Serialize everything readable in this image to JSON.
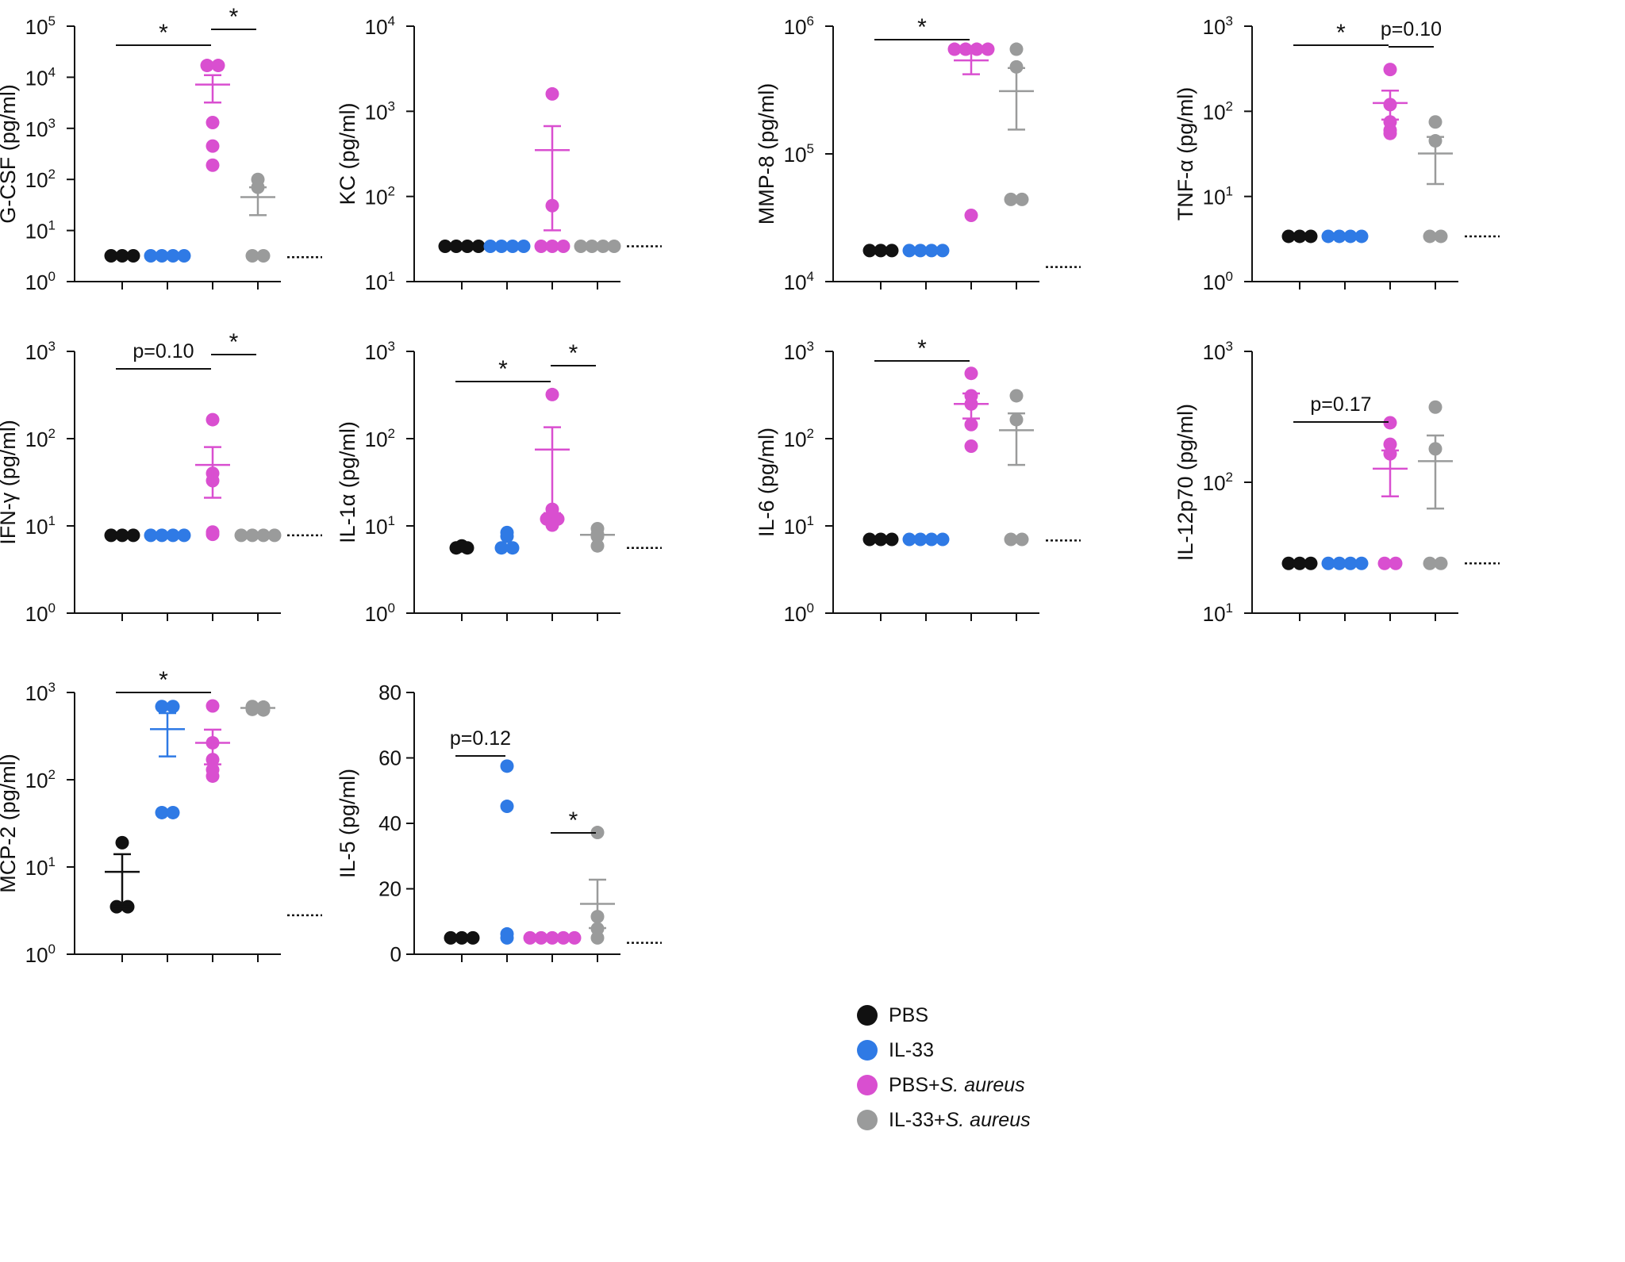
{
  "figure": {
    "title": ""
  },
  "groups": [
    "PBS",
    "IL-33",
    "PBS+S. aureus",
    "IL-33+S. aureus"
  ],
  "legend": {
    "items": [
      {
        "label": "PBS",
        "prefix": "PBS",
        "italic": "",
        "color": "#111111"
      },
      {
        "label": "IL-33",
        "prefix": "IL-33",
        "italic": "",
        "color": "#2f7ae5"
      },
      {
        "label": "PBS+S. aureus",
        "prefix": "PBS+",
        "italic": "S. aureus",
        "color": "#d94fd0"
      },
      {
        "label": "IL-33+S. aureus",
        "prefix": "IL-33+",
        "italic": "S. aureus",
        "color": "#9a9b9b"
      }
    ]
  },
  "chart_data": [
    {
      "type": "scatter",
      "scale": "log",
      "ylabel": "G-CSF (pg/ml)",
      "ylim": [
        1,
        100000
      ],
      "ticks": [
        1,
        10,
        100,
        1000,
        10000,
        100000
      ],
      "tick_exponents": [
        "0",
        "1",
        "2",
        "3",
        "4",
        "5"
      ],
      "lloq": 3,
      "series": [
        {
          "name": "PBS",
          "points": [
            3.2,
            3.2,
            3.2
          ]
        },
        {
          "name": "IL-33",
          "points": [
            3.2,
            3.2,
            3.2,
            3.2
          ]
        },
        {
          "name": "PBS+S. aureus",
          "points": [
            17000,
            17000,
            1300,
            450,
            190
          ],
          "mean": 7200,
          "sem_lo": 3200,
          "sem_hi": 11000
        },
        {
          "name": "IL-33+S. aureus",
          "points": [
            100,
            70,
            3.2,
            3.2
          ],
          "mean": 45,
          "sem_lo": 20,
          "sem_hi": 70
        }
      ],
      "annotations": [
        {
          "from": 0,
          "to": 2,
          "label": "*"
        },
        {
          "from": 2,
          "to": 3,
          "label": "*"
        }
      ]
    },
    {
      "type": "scatter",
      "scale": "log",
      "ylabel": "KC (pg/ml)",
      "ylim": [
        10,
        10000
      ],
      "ticks": [
        10,
        100,
        1000,
        10000
      ],
      "tick_exponents": [
        "1",
        "2",
        "3",
        "4"
      ],
      "lloq": 26,
      "series": [
        {
          "name": "PBS",
          "points": [
            26,
            26,
            26,
            26
          ]
        },
        {
          "name": "IL-33",
          "points": [
            26,
            26,
            26,
            26
          ]
        },
        {
          "name": "PBS+S. aureus",
          "points": [
            1600,
            78,
            26,
            26,
            26
          ],
          "mean": 350,
          "sem_lo": 40,
          "sem_hi": 670
        },
        {
          "name": "IL-33+S. aureus",
          "points": [
            26,
            26,
            26,
            26
          ]
        }
      ],
      "annotations": []
    },
    {
      "type": "scatter",
      "scale": "log",
      "ylabel": "MMP-8 (pg/ml)",
      "ylim": [
        10000,
        1000000
      ],
      "ticks": [
        10000,
        100000,
        1000000
      ],
      "tick_exponents": [
        "4",
        "5",
        "6"
      ],
      "lloq": 13000,
      "series": [
        {
          "name": "PBS",
          "points": [
            17500,
            17500,
            17500
          ]
        },
        {
          "name": "IL-33",
          "points": [
            17500,
            17500,
            17500,
            17500
          ]
        },
        {
          "name": "PBS+S. aureus",
          "points": [
            660000,
            660000,
            660000,
            660000,
            33000
          ],
          "mean": 540000,
          "sem_lo": 420000,
          "sem_hi": 660000
        },
        {
          "name": "IL-33+S. aureus",
          "points": [
            660000,
            480000,
            44000,
            44000
          ],
          "mean": 310000,
          "sem_lo": 155000,
          "sem_hi": 470000
        }
      ],
      "annotations": [
        {
          "from": 0,
          "to": 2,
          "label": "*"
        }
      ]
    },
    {
      "type": "scatter",
      "scale": "log",
      "ylabel": "TNF-α (pg/ml)",
      "ylim": [
        1,
        1000
      ],
      "ticks": [
        1,
        10,
        100,
        1000
      ],
      "tick_exponents": [
        "0",
        "1",
        "2",
        "3"
      ],
      "lloq": 3.4,
      "series": [
        {
          "name": "PBS",
          "points": [
            3.4,
            3.4,
            3.4
          ]
        },
        {
          "name": "IL-33",
          "points": [
            3.4,
            3.4,
            3.4,
            3.4
          ]
        },
        {
          "name": "PBS+S. aureus",
          "points": [
            310,
            120,
            75,
            60,
            55
          ],
          "mean": 125,
          "sem_lo": 80,
          "sem_hi": 175
        },
        {
          "name": "IL-33+S. aureus",
          "points": [
            75,
            45,
            3.4,
            3.4
          ],
          "mean": 32,
          "sem_lo": 14,
          "sem_hi": 50
        }
      ],
      "annotations": [
        {
          "from": 0,
          "to": 2,
          "label": "*"
        },
        {
          "from": 2,
          "to": 3,
          "label": "p=0.10"
        }
      ]
    },
    {
      "type": "scatter",
      "scale": "log",
      "ylabel": "IFN-γ (pg/ml)",
      "ylim": [
        1,
        1000
      ],
      "ticks": [
        1,
        10,
        100,
        1000
      ],
      "tick_exponents": [
        "0",
        "1",
        "2",
        "3"
      ],
      "lloq": 7.8,
      "series": [
        {
          "name": "PBS",
          "points": [
            7.8,
            7.8,
            7.8
          ]
        },
        {
          "name": "IL-33",
          "points": [
            7.8,
            7.8,
            7.8,
            7.8
          ]
        },
        {
          "name": "PBS+S. aureus",
          "points": [
            165,
            40,
            33,
            8.5,
            8.0
          ],
          "mean": 50,
          "sem_lo": 21,
          "sem_hi": 80
        },
        {
          "name": "IL-33+S. aureus",
          "points": [
            7.8,
            7.8,
            7.8,
            7.8
          ]
        }
      ],
      "annotations": [
        {
          "from": 0,
          "to": 2,
          "label": "p=0.10"
        },
        {
          "from": 2,
          "to": 3,
          "label": "*"
        }
      ]
    },
    {
      "type": "scatter",
      "scale": "log",
      "ylabel": "IL-1α (pg/ml)",
      "ylim": [
        1,
        1000
      ],
      "ticks": [
        1,
        10,
        100,
        1000
      ],
      "tick_exponents": [
        "0",
        "1",
        "2",
        "3"
      ],
      "lloq": 5.6,
      "series": [
        {
          "name": "PBS",
          "points": [
            5.9,
            5.6,
            5.6
          ]
        },
        {
          "name": "IL-33",
          "points": [
            8.4,
            7.6,
            5.6,
            5.6
          ]
        },
        {
          "name": "PBS+S. aureus",
          "points": [
            320,
            15.5,
            12,
            12,
            10.2
          ],
          "mean": 75,
          "sem_lo": 14,
          "sem_hi": 135
        },
        {
          "name": "IL-33+S. aureus",
          "points": [
            9.3,
            8.0,
            7.6,
            5.9
          ],
          "mean": 7.9
        }
      ],
      "annotations": [
        {
          "from": 0,
          "to": 2,
          "label": "*"
        },
        {
          "from": 2,
          "to": 3,
          "label": "*"
        }
      ]
    },
    {
      "type": "scatter",
      "scale": "log",
      "ylabel": "IL-6 (pg/ml)",
      "ylim": [
        1,
        1000
      ],
      "ticks": [
        1,
        10,
        100,
        1000
      ],
      "tick_exponents": [
        "0",
        "1",
        "2",
        "3"
      ],
      "lloq": 6.8,
      "series": [
        {
          "name": "PBS",
          "points": [
            7.0,
            7.0,
            7.0
          ]
        },
        {
          "name": "IL-33",
          "points": [
            7.0,
            7.0,
            7.0,
            7.0
          ]
        },
        {
          "name": "PBS+S. aureus",
          "points": [
            560,
            310,
            250,
            145,
            82
          ],
          "mean": 250,
          "sem_lo": 170,
          "sem_hi": 330
        },
        {
          "name": "IL-33+S. aureus",
          "points": [
            310,
            165,
            7.0,
            7.0
          ],
          "mean": 125,
          "sem_lo": 50,
          "sem_hi": 195
        }
      ],
      "annotations": [
        {
          "from": 0,
          "to": 2,
          "label": "*"
        }
      ]
    },
    {
      "type": "scatter",
      "scale": "log",
      "ylabel": "IL-12p70 (pg/ml)",
      "ylim": [
        10,
        1000
      ],
      "ticks": [
        10,
        100,
        1000
      ],
      "tick_exponents": [
        "1",
        "2",
        "3"
      ],
      "lloq": 24,
      "series": [
        {
          "name": "PBS",
          "points": [
            24,
            24,
            24
          ]
        },
        {
          "name": "IL-33",
          "points": [
            24,
            24,
            24,
            24
          ]
        },
        {
          "name": "PBS+S. aureus",
          "points": [
            285,
            195,
            165,
            24,
            24
          ],
          "mean": 127,
          "sem_lo": 78,
          "sem_hi": 175
        },
        {
          "name": "IL-33+S. aureus",
          "points": [
            375,
            180,
            24,
            24
          ],
          "mean": 145,
          "sem_lo": 63,
          "sem_hi": 228
        }
      ],
      "annotations": [
        {
          "from": 0,
          "to": 2,
          "label": "p=0.17"
        }
      ]
    },
    {
      "type": "scatter",
      "scale": "log",
      "ylabel": "MCP-2 (pg/ml)",
      "ylim": [
        1,
        1000
      ],
      "ticks": [
        1,
        10,
        100,
        1000
      ],
      "tick_exponents": [
        "0",
        "1",
        "2",
        "3"
      ],
      "lloq": 2.8,
      "series": [
        {
          "name": "PBS",
          "points": [
            19,
            3.5,
            3.5
          ],
          "mean": 8.8,
          "sem_lo": 3.5,
          "sem_hi": 14
        },
        {
          "name": "IL-33",
          "points": [
            690,
            690,
            42,
            42
          ],
          "mean": 380,
          "sem_lo": 185,
          "sem_hi": 580
        },
        {
          "name": "PBS+S. aureus",
          "points": [
            700,
            265,
            170,
            130,
            110
          ],
          "mean": 265,
          "sem_lo": 150,
          "sem_hi": 375
        },
        {
          "name": "IL-33+S. aureus",
          "points": [
            690,
            680,
            640,
            630
          ],
          "mean": 665
        }
      ],
      "annotations": [
        {
          "from": 0,
          "to": 2,
          "label": "*"
        }
      ]
    },
    {
      "type": "scatter",
      "scale": "linear",
      "ylabel": "IL-5 (pg/ml)",
      "ylim": [
        0,
        80
      ],
      "ticks": [
        0,
        20,
        40,
        60,
        80
      ],
      "lloq": 3.5,
      "series": [
        {
          "name": "PBS",
          "points": [
            5,
            5,
            5
          ]
        },
        {
          "name": "IL-33",
          "points": [
            57.5,
            45.2,
            6.2,
            5
          ]
        },
        {
          "name": "PBS+S. aureus",
          "points": [
            5,
            5,
            5,
            5,
            5
          ]
        },
        {
          "name": "IL-33+S. aureus",
          "points": [
            37.2,
            11.5,
            7.8,
            5
          ],
          "mean": 15.4,
          "sem_lo": 8,
          "sem_hi": 22.8
        }
      ],
      "annotations": [
        {
          "from": 0,
          "to": 1,
          "label": "p=0.12"
        },
        {
          "from": 2,
          "to": 3,
          "label": "*"
        }
      ]
    }
  ]
}
